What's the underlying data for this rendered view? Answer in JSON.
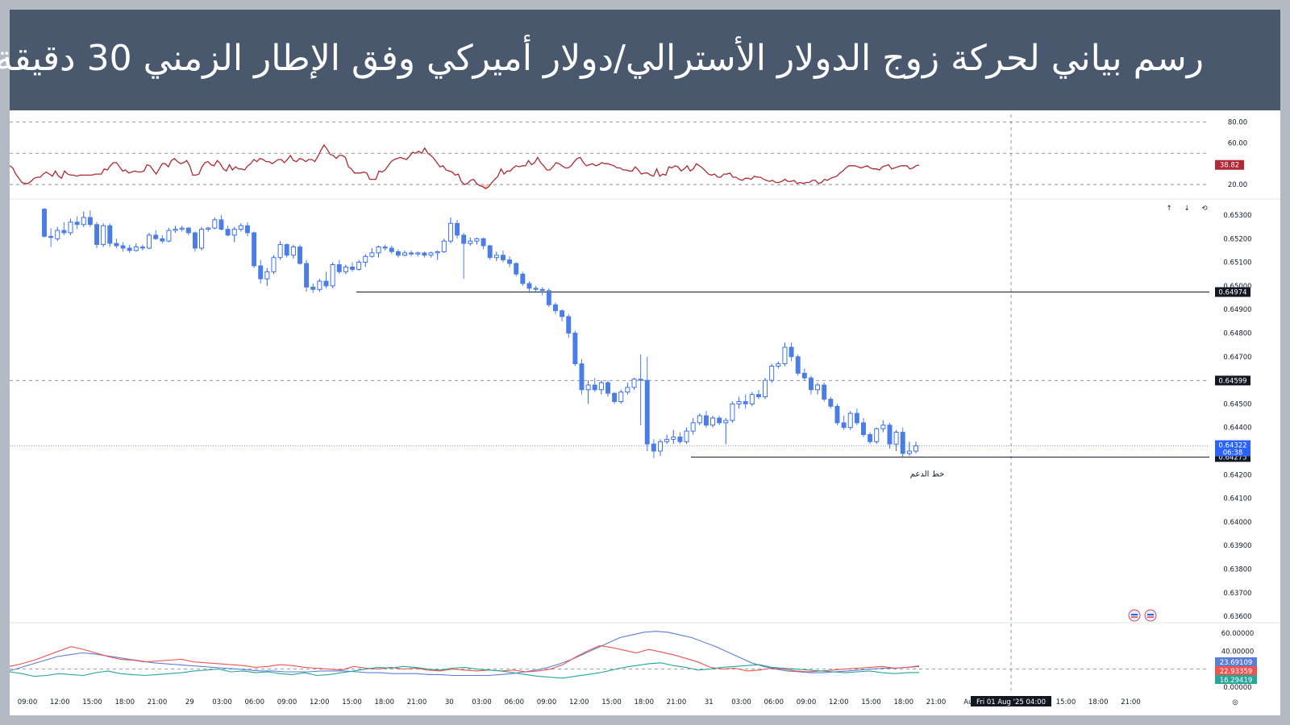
{
  "title": "رسم بياني لحركة زوج الدولار الأسترالي/دولار أميركي وفق الإطار الزمني 30 دقيقة",
  "chart_data": {
    "type": "candlestick",
    "colors": {
      "up": "#2962ff",
      "up_fill": "#ffffff",
      "down": "#4a7de6",
      "rsi": "#b22833",
      "adx_plus": "#26a69a",
      "adx_minus": "#ef5350",
      "adx": "#5b7fd6"
    },
    "price_axis": {
      "ticks": [
        "0.65300",
        "0.65200",
        "0.65100",
        "0.65000",
        "0.64900",
        "0.64800",
        "0.64700",
        "0.64500",
        "0.64400",
        "0.64200",
        "0.64100",
        "0.64000",
        "0.63900",
        "0.63800",
        "0.63700",
        "0.63600"
      ],
      "ylim": [
        0.6356,
        0.6535
      ]
    },
    "x_axis": {
      "ticks": [
        "09:00",
        "12:00",
        "15:00",
        "18:00",
        "21:00",
        "29",
        "03:00",
        "06:00",
        "09:00",
        "12:00",
        "15:00",
        "18:00",
        "21:00",
        "30",
        "03:00",
        "06:00",
        "09:00",
        "12:00",
        "15:00",
        "18:00",
        "21:00",
        "31",
        "03:00",
        "06:00",
        "09:00",
        "12:00",
        "15:00",
        "18:00",
        "21:00",
        "Au",
        "09:00",
        "12:00",
        "15:00",
        "18:00",
        "21:00"
      ],
      "crosshair_label": "Fri 01 Aug '25   04:00"
    },
    "horizontal_lines": [
      {
        "value": 0.64974,
        "label": "0.64974",
        "style": "solid"
      },
      {
        "value": 0.64275,
        "label": "0.64275",
        "style": "solid",
        "annotation": "خط الدعم"
      },
      {
        "value": 0.64599,
        "label": "0.64599",
        "style": "dashed"
      }
    ],
    "last_price": {
      "label": "0.64322",
      "countdown": "06:38"
    },
    "candles": [
      [
        0.65325,
        0.6533,
        0.65205,
        0.6521
      ],
      [
        0.6521,
        0.65245,
        0.65165,
        0.65205
      ],
      [
        0.652,
        0.6525,
        0.6519,
        0.65235
      ],
      [
        0.65235,
        0.6527,
        0.65215,
        0.65225
      ],
      [
        0.65225,
        0.65285,
        0.65215,
        0.6527
      ],
      [
        0.6527,
        0.65295,
        0.6524,
        0.6526
      ],
      [
        0.6526,
        0.65315,
        0.6525,
        0.6529
      ],
      [
        0.6529,
        0.6532,
        0.6525,
        0.6526
      ],
      [
        0.6526,
        0.6527,
        0.6516,
        0.65175
      ],
      [
        0.65175,
        0.65265,
        0.65165,
        0.65255
      ],
      [
        0.65255,
        0.65265,
        0.65165,
        0.6518
      ],
      [
        0.6518,
        0.652,
        0.6516,
        0.6517
      ],
      [
        0.6517,
        0.65185,
        0.65145,
        0.6516
      ],
      [
        0.6516,
        0.65175,
        0.6514,
        0.6515
      ],
      [
        0.6515,
        0.6518,
        0.65145,
        0.65165
      ],
      [
        0.65165,
        0.65175,
        0.6515,
        0.6516
      ],
      [
        0.6516,
        0.65225,
        0.65155,
        0.65215
      ],
      [
        0.65215,
        0.65235,
        0.65195,
        0.652
      ],
      [
        0.652,
        0.65215,
        0.6518,
        0.6519
      ],
      [
        0.6519,
        0.65245,
        0.65185,
        0.65235
      ],
      [
        0.65235,
        0.65255,
        0.65225,
        0.6524
      ],
      [
        0.6524,
        0.65255,
        0.6523,
        0.65245
      ],
      [
        0.65245,
        0.6525,
        0.65215,
        0.65225
      ],
      [
        0.65225,
        0.6523,
        0.65145,
        0.6516
      ],
      [
        0.6516,
        0.6525,
        0.6515,
        0.6524
      ],
      [
        0.6524,
        0.6525,
        0.6523,
        0.65245
      ],
      [
        0.65245,
        0.6529,
        0.6524,
        0.6528
      ],
      [
        0.6528,
        0.653,
        0.65235,
        0.6524
      ],
      [
        0.6524,
        0.65255,
        0.6521,
        0.65215
      ],
      [
        0.65215,
        0.6525,
        0.65185,
        0.6524
      ],
      [
        0.6524,
        0.65265,
        0.6523,
        0.65255
      ],
      [
        0.65255,
        0.6527,
        0.6521,
        0.65225
      ],
      [
        0.65225,
        0.6523,
        0.65075,
        0.65085
      ],
      [
        0.65085,
        0.6511,
        0.6501,
        0.6503
      ],
      [
        0.6503,
        0.65075,
        0.65,
        0.6506
      ],
      [
        0.6506,
        0.6513,
        0.6505,
        0.6512
      ],
      [
        0.6512,
        0.6519,
        0.6511,
        0.65175
      ],
      [
        0.65175,
        0.6518,
        0.6512,
        0.6513
      ],
      [
        0.6513,
        0.65175,
        0.65115,
        0.65165
      ],
      [
        0.65165,
        0.65175,
        0.6509,
        0.65095
      ],
      [
        0.65095,
        0.6511,
        0.64975,
        0.64995
      ],
      [
        0.64995,
        0.6501,
        0.6497,
        0.64985
      ],
      [
        0.64985,
        0.6503,
        0.64975,
        0.6502
      ],
      [
        0.6502,
        0.6506,
        0.6499,
        0.65
      ],
      [
        0.65,
        0.651,
        0.6499,
        0.6509
      ],
      [
        0.6509,
        0.6511,
        0.6505,
        0.6506
      ],
      [
        0.6506,
        0.6509,
        0.6505,
        0.6508
      ],
      [
        0.6508,
        0.651,
        0.6506,
        0.6507
      ],
      [
        0.6507,
        0.6511,
        0.65065,
        0.651
      ],
      [
        0.651,
        0.65135,
        0.6508,
        0.65125
      ],
      [
        0.65125,
        0.6516,
        0.6512,
        0.6514
      ],
      [
        0.6514,
        0.6517,
        0.6512,
        0.65165
      ],
      [
        0.65165,
        0.65175,
        0.6515,
        0.6516
      ],
      [
        0.6516,
        0.6517,
        0.65135,
        0.65145
      ],
      [
        0.65145,
        0.65155,
        0.6512,
        0.6513
      ],
      [
        0.6513,
        0.6515,
        0.65125,
        0.6514
      ],
      [
        0.6514,
        0.6515,
        0.65125,
        0.65135
      ],
      [
        0.65135,
        0.65145,
        0.65125,
        0.6514
      ],
      [
        0.6514,
        0.65145,
        0.6512,
        0.6513
      ],
      [
        0.6513,
        0.65145,
        0.6512,
        0.6514
      ],
      [
        0.6514,
        0.6515,
        0.6511,
        0.65145
      ],
      [
        0.65145,
        0.652,
        0.6514,
        0.6519
      ],
      [
        0.6519,
        0.6529,
        0.6518,
        0.65265
      ],
      [
        0.65265,
        0.6528,
        0.652,
        0.65215
      ],
      [
        0.65215,
        0.65225,
        0.6503,
        0.6518
      ],
      [
        0.6518,
        0.65205,
        0.6517,
        0.6519
      ],
      [
        0.6519,
        0.65205,
        0.65175,
        0.652
      ],
      [
        0.652,
        0.65205,
        0.65155,
        0.6517
      ],
      [
        0.6517,
        0.65175,
        0.6511,
        0.6512
      ],
      [
        0.6512,
        0.65145,
        0.65105,
        0.6513
      ],
      [
        0.6513,
        0.6515,
        0.651,
        0.6511
      ],
      [
        0.6511,
        0.65125,
        0.6508,
        0.65095
      ],
      [
        0.65095,
        0.651,
        0.6504,
        0.6505
      ],
      [
        0.6505,
        0.6506,
        0.65,
        0.6501
      ],
      [
        0.6501,
        0.6502,
        0.6497,
        0.6499
      ],
      [
        0.6499,
        0.65,
        0.6497,
        0.64985
      ],
      [
        0.64985,
        0.64995,
        0.6496,
        0.6498
      ],
      [
        0.6498,
        0.6499,
        0.6491,
        0.6492
      ],
      [
        0.6492,
        0.6493,
        0.6488,
        0.64895
      ],
      [
        0.64895,
        0.649,
        0.6485,
        0.6487
      ],
      [
        0.6487,
        0.6488,
        0.6478,
        0.648
      ],
      [
        0.648,
        0.6481,
        0.6466,
        0.6467
      ],
      [
        0.6467,
        0.6469,
        0.6454,
        0.6456
      ],
      [
        0.6456,
        0.646,
        0.645,
        0.6458
      ],
      [
        0.6458,
        0.6461,
        0.6455,
        0.6456
      ],
      [
        0.6456,
        0.646,
        0.6454,
        0.6459
      ],
      [
        0.6459,
        0.646,
        0.6453,
        0.64545
      ],
      [
        0.64545,
        0.6455,
        0.645,
        0.6451
      ],
      [
        0.6451,
        0.6456,
        0.645,
        0.6455
      ],
      [
        0.6455,
        0.6459,
        0.6454,
        0.6457
      ],
      [
        0.6457,
        0.6461,
        0.6456,
        0.64605
      ],
      [
        0.64605,
        0.6471,
        0.6441,
        0.646
      ],
      [
        0.646,
        0.647,
        0.643,
        0.6433
      ],
      [
        0.6433,
        0.6435,
        0.6427,
        0.643
      ],
      [
        0.643,
        0.6435,
        0.6428,
        0.6434
      ],
      [
        0.6434,
        0.6437,
        0.6433,
        0.6435
      ],
      [
        0.6435,
        0.6439,
        0.6433,
        0.6436
      ],
      [
        0.6436,
        0.6438,
        0.6433,
        0.6434
      ],
      [
        0.6434,
        0.644,
        0.6433,
        0.64385
      ],
      [
        0.64385,
        0.6444,
        0.6437,
        0.6442
      ],
      [
        0.6442,
        0.6446,
        0.6441,
        0.6445
      ],
      [
        0.6445,
        0.6447,
        0.644,
        0.6441
      ],
      [
        0.6441,
        0.6445,
        0.644,
        0.6444
      ],
      [
        0.6444,
        0.6445,
        0.6441,
        0.6442
      ],
      [
        0.6442,
        0.6444,
        0.6433,
        0.6443
      ],
      [
        0.6443,
        0.6451,
        0.6442,
        0.645
      ],
      [
        0.645,
        0.6453,
        0.6448,
        0.6451
      ],
      [
        0.6451,
        0.6454,
        0.6448,
        0.645
      ],
      [
        0.645,
        0.6455,
        0.6449,
        0.6454
      ],
      [
        0.6454,
        0.6456,
        0.6452,
        0.6453
      ],
      [
        0.6453,
        0.6461,
        0.6452,
        0.646
      ],
      [
        0.646,
        0.6467,
        0.6459,
        0.6466
      ],
      [
        0.6466,
        0.6468,
        0.6465,
        0.6467
      ],
      [
        0.6467,
        0.6476,
        0.6466,
        0.6474
      ],
      [
        0.6474,
        0.6476,
        0.6468,
        0.647
      ],
      [
        0.647,
        0.6471,
        0.6462,
        0.6463
      ],
      [
        0.6463,
        0.6465,
        0.646,
        0.6461
      ],
      [
        0.6461,
        0.6462,
        0.6454,
        0.6456
      ],
      [
        0.6456,
        0.6459,
        0.6454,
        0.6458
      ],
      [
        0.6458,
        0.6459,
        0.6451,
        0.6452
      ],
      [
        0.6452,
        0.6453,
        0.6448,
        0.6449
      ],
      [
        0.6449,
        0.645,
        0.6441,
        0.6442
      ],
      [
        0.6442,
        0.6445,
        0.6439,
        0.644
      ],
      [
        0.644,
        0.6447,
        0.6439,
        0.6446
      ],
      [
        0.6446,
        0.6448,
        0.6441,
        0.6442
      ],
      [
        0.6442,
        0.6444,
        0.6436,
        0.6437
      ],
      [
        0.6437,
        0.6438,
        0.6433,
        0.6434
      ],
      [
        0.6434,
        0.644,
        0.6433,
        0.64395
      ],
      [
        0.64395,
        0.6443,
        0.6438,
        0.6441
      ],
      [
        0.6441,
        0.6442,
        0.6431,
        0.6433
      ],
      [
        0.6433,
        0.6439,
        0.643,
        0.6438
      ],
      [
        0.6438,
        0.644,
        0.6427,
        0.6429
      ],
      [
        0.6429,
        0.6434,
        0.6428,
        0.643
      ],
      [
        0.643,
        0.6434,
        0.6429,
        0.64322
      ]
    ],
    "rsi": {
      "ticks": [
        "80.00",
        "60.00",
        "20.00"
      ],
      "ylim": [
        10,
        85
      ],
      "dashed_levels": [
        80,
        50,
        20
      ],
      "last_label": "38.82",
      "values": [
        38,
        36,
        30,
        26,
        22,
        21,
        21,
        23,
        26,
        27,
        27,
        30,
        32,
        30,
        28,
        33,
        28,
        26,
        33,
        30,
        29,
        29,
        28,
        29,
        29,
        29,
        29,
        29,
        30,
        30,
        30,
        35,
        34,
        38,
        41,
        41,
        37,
        33,
        34,
        31,
        32,
        33,
        32,
        32,
        33,
        39,
        38,
        34,
        30,
        35,
        40,
        40,
        37,
        43,
        45,
        42,
        40,
        41,
        43,
        38,
        29,
        29,
        30,
        37,
        41,
        42,
        39,
        38,
        43,
        40,
        35,
        33,
        39,
        34,
        37,
        35,
        35,
        34,
        38,
        40,
        44,
        42,
        45,
        44,
        42,
        42,
        40,
        42,
        44,
        44,
        41,
        44,
        48,
        43,
        42,
        45,
        44,
        42,
        44,
        44,
        42,
        47,
        53,
        58,
        54,
        49,
        48,
        45,
        48,
        48,
        46,
        37,
        35,
        31,
        31,
        31,
        32,
        31,
        25,
        25,
        25,
        33,
        32,
        34,
        38,
        42,
        44,
        45,
        46,
        45,
        44,
        47,
        51,
        50,
        52,
        50,
        55,
        50,
        48,
        45,
        41,
        37,
        38,
        34,
        33,
        32,
        29,
        30,
        23,
        20,
        21,
        24,
        25,
        21,
        19,
        18,
        16,
        18,
        22,
        25,
        28,
        35,
        30,
        33,
        33,
        36,
        38,
        37,
        38,
        38,
        43,
        39,
        41,
        46,
        41,
        38,
        34,
        34,
        37,
        41,
        40,
        38,
        36,
        36,
        38,
        42,
        45,
        46,
        41,
        38,
        39,
        40,
        38,
        39,
        41,
        40,
        40,
        39,
        38,
        36,
        36,
        34,
        34,
        33,
        33,
        37,
        34,
        30,
        31,
        31,
        29,
        28,
        35,
        28,
        30,
        29,
        37,
        36,
        38,
        37,
        33,
        35,
        38,
        33,
        35,
        40,
        38,
        36,
        33,
        30,
        29,
        30,
        27,
        27,
        30,
        30,
        31,
        27,
        27,
        25,
        24,
        26,
        26,
        25,
        28,
        27,
        27,
        25,
        24,
        23,
        24,
        22,
        22,
        23,
        25,
        23,
        23,
        24,
        21,
        22,
        21,
        22,
        22,
        24,
        24,
        21,
        22,
        25,
        24,
        26,
        27,
        28,
        31,
        33,
        36,
        38,
        38,
        38,
        37,
        36,
        37,
        38,
        36,
        35,
        35,
        34,
        37,
        38,
        39,
        35,
        36,
        37,
        38,
        38,
        38,
        35,
        36,
        38,
        38.82
      ]
    },
    "adx": {
      "ticks": [
        "60.00000",
        "40.00000",
        "0.00000"
      ],
      "ylim": [
        0,
        68
      ],
      "dashed_level": 20,
      "labels": {
        "adx": "23.69109",
        "minus_di": "22.93359",
        "plus_di": "16.29419"
      },
      "adx_values": [
        18,
        22,
        26,
        30,
        34,
        36,
        38,
        37,
        35,
        33,
        31,
        29,
        27,
        26,
        25,
        24,
        23,
        22,
        21,
        20,
        19,
        18,
        18,
        17,
        17,
        17,
        18,
        18,
        18,
        17,
        16,
        16,
        15,
        15,
        15,
        14,
        14,
        13,
        13,
        13,
        13,
        14,
        15,
        17,
        19,
        22,
        26,
        31,
        37,
        43,
        49,
        55,
        58,
        61,
        62,
        61,
        58,
        55,
        50,
        45,
        39,
        33,
        27,
        23,
        20,
        18,
        17,
        16,
        16,
        17,
        18,
        19,
        20,
        21,
        21,
        22,
        23.69
      ],
      "minus_di_values": [
        23,
        26,
        30,
        35,
        40,
        45,
        42,
        38,
        34,
        31,
        30,
        28,
        29,
        30,
        31,
        28,
        27,
        26,
        25,
        24,
        22,
        23,
        25,
        24,
        22,
        21,
        20,
        19,
        23,
        21,
        20,
        22,
        20,
        21,
        19,
        18,
        20,
        19,
        18,
        19,
        18,
        19,
        17,
        18,
        20,
        25,
        33,
        40,
        46,
        44,
        41,
        38,
        42,
        39,
        36,
        32,
        28,
        22,
        20,
        21,
        18,
        19,
        21,
        20,
        18,
        17,
        18,
        19,
        20,
        21,
        22,
        23,
        21,
        22,
        22.93
      ],
      "plus_di_values": [
        17,
        15,
        12,
        13,
        15,
        14,
        13,
        16,
        18,
        15,
        14,
        13,
        14,
        15,
        16,
        18,
        19,
        20,
        17,
        18,
        16,
        17,
        15,
        14,
        16,
        13,
        14,
        16,
        18,
        20,
        22,
        21,
        23,
        22,
        20,
        19,
        21,
        22,
        20,
        19,
        18,
        16,
        14,
        12,
        11,
        10,
        12,
        14,
        16,
        19,
        22,
        24,
        26,
        27,
        24,
        22,
        19,
        20,
        22,
        23,
        24,
        25,
        22,
        21,
        20,
        19,
        18,
        17,
        16,
        17,
        18,
        16,
        15,
        16,
        16.29
      ]
    },
    "icons": [
      "up-arrow-icon",
      "down-arrow-icon",
      "reset-icon",
      "flag-icon",
      "flag-icon",
      "settings-icon"
    ]
  }
}
